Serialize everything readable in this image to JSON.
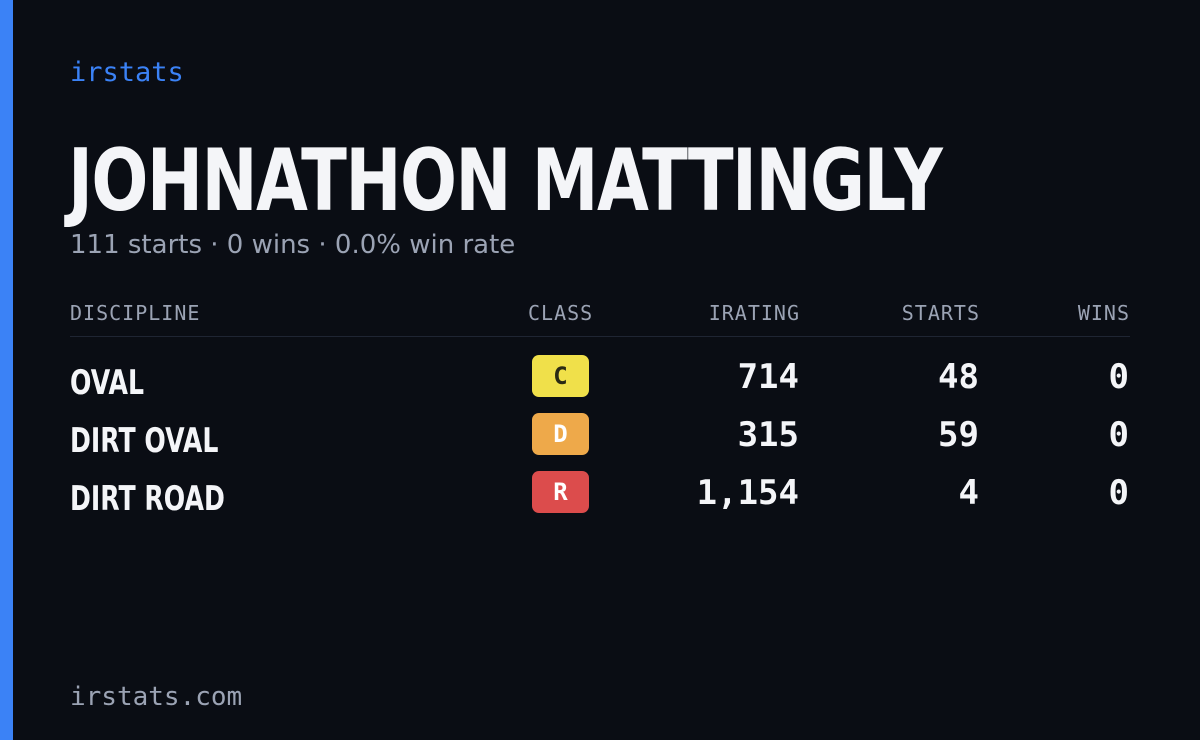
{
  "brand": "irstats",
  "driver": {
    "name": "JOHNATHON MATTINGLY",
    "summary": "111 starts · 0 wins · 0.0% win rate"
  },
  "table": {
    "headers": {
      "discipline": "DISCIPLINE",
      "class": "CLASS",
      "irating": "IRATING",
      "starts": "STARTS",
      "wins": "WINS"
    },
    "rows": [
      {
        "discipline": "OVAL",
        "class": "C",
        "class_color": "#f0e04a",
        "class_text_color": "#2a2a14",
        "irating": "714",
        "starts": "48",
        "wins": "0"
      },
      {
        "discipline": "DIRT OVAL",
        "class": "D",
        "class_color": "#eea94a",
        "class_text_color": "#ffffff",
        "irating": "315",
        "starts": "59",
        "wins": "0"
      },
      {
        "discipline": "DIRT ROAD",
        "class": "R",
        "class_color": "#dc4c4c",
        "class_text_color": "#ffffff",
        "irating": "1,154",
        "starts": "4",
        "wins": "0"
      }
    ]
  },
  "footer": "irstats.com",
  "colors": {
    "background": "#0a0d14",
    "accent": "#3b82f6",
    "muted_text": "#9ba3b4"
  }
}
